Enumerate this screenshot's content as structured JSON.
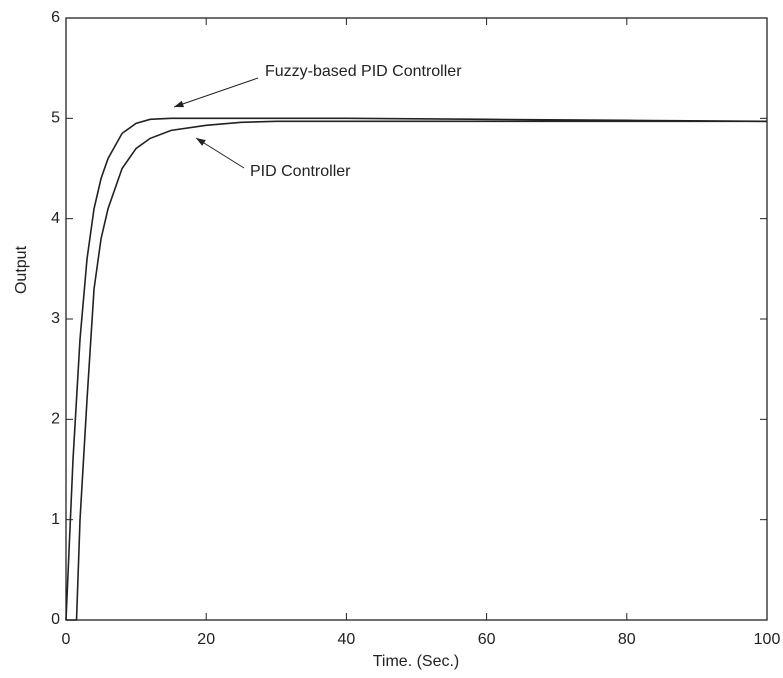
{
  "chart_data": {
    "type": "line",
    "xlabel": "Time. (Sec.)",
    "ylabel": "Output",
    "x": [
      0,
      1,
      1.5,
      2,
      3,
      4,
      5,
      6,
      8,
      10,
      12,
      15,
      20,
      25,
      30,
      40,
      60,
      80,
      100
    ],
    "series": [
      {
        "name": "Fuzzy-based PID Controller",
        "color": "#222222",
        "values": [
          0,
          1.6,
          2.2,
          2.8,
          3.6,
          4.1,
          4.4,
          4.6,
          4.85,
          4.95,
          4.99,
          5,
          5,
          5,
          5,
          5,
          4.99,
          4.98,
          4.97
        ]
      },
      {
        "name": "PID Controller",
        "color": "#222222",
        "values": [
          0,
          0,
          0,
          1.0,
          2.2,
          3.3,
          3.8,
          4.1,
          4.5,
          4.7,
          4.8,
          4.88,
          4.93,
          4.96,
          4.97,
          4.97,
          4.97,
          4.97,
          4.97
        ]
      }
    ],
    "xlim": [
      0,
      100
    ],
    "ylim": [
      0,
      6
    ],
    "xticks": [
      0,
      20,
      40,
      60,
      80,
      100
    ],
    "yticks": [
      0,
      1,
      2,
      3,
      4,
      5,
      6
    ]
  }
}
